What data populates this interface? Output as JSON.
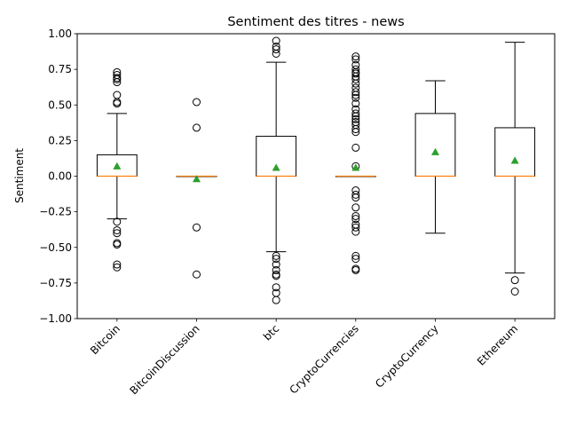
{
  "chart_data": {
    "type": "box",
    "title": "Sentiment des titres - news",
    "xlabel": "",
    "ylabel": "Sentiment",
    "ylim": [
      -1.0,
      1.0
    ],
    "yticks": [
      "−1.00",
      "−0.75",
      "−0.50",
      "−0.25",
      "0.00",
      "0.25",
      "0.50",
      "0.75",
      "1.00"
    ],
    "ytick_values": [
      -1.0,
      -0.75,
      -0.5,
      -0.25,
      0.0,
      0.25,
      0.5,
      0.75,
      1.0
    ],
    "categories": [
      "Bitcoin",
      "BitcoinDiscussion",
      "btc",
      "CryptoCurrencies",
      "CryptoCurrency",
      "Ethereum"
    ],
    "grid": false,
    "colors": {
      "box": "#000000",
      "median": "#ff7f0e",
      "mean": "#2ca02c"
    },
    "boxes": [
      {
        "q1": 0.0,
        "median": 0.0,
        "q3": 0.15,
        "whisker_low": -0.3,
        "whisker_high": 0.44,
        "mean": 0.07,
        "outliers": [
          0.73,
          0.71,
          0.69,
          0.68,
          0.66,
          0.57,
          0.52,
          0.51,
          -0.32,
          -0.38,
          -0.4,
          -0.47,
          -0.48,
          -0.62,
          -0.64
        ]
      },
      {
        "q1": 0.0,
        "median": 0.0,
        "q3": 0.0,
        "whisker_low": 0.0,
        "whisker_high": 0.0,
        "mean": -0.02,
        "outliers": [
          0.52,
          0.34,
          -0.36,
          -0.69
        ]
      },
      {
        "q1": 0.0,
        "median": 0.0,
        "q3": 0.28,
        "whisker_low": -0.53,
        "whisker_high": 0.8,
        "mean": 0.06,
        "outliers": [
          0.95,
          0.91,
          0.89,
          0.86,
          -0.56,
          -0.58,
          -0.62,
          -0.66,
          -0.69,
          -0.7,
          -0.78,
          -0.82,
          -0.87
        ]
      },
      {
        "q1": 0.0,
        "median": 0.0,
        "q3": 0.0,
        "whisker_low": 0.0,
        "whisker_high": 0.0,
        "mean": 0.06,
        "outliers": [
          0.84,
          0.82,
          0.78,
          0.75,
          0.73,
          0.72,
          0.7,
          0.68,
          0.65,
          0.62,
          0.59,
          0.57,
          0.55,
          0.51,
          0.47,
          0.44,
          0.42,
          0.4,
          0.38,
          0.36,
          0.33,
          0.31,
          0.2,
          0.07,
          -0.1,
          -0.13,
          -0.15,
          -0.22,
          -0.28,
          -0.3,
          -0.34,
          -0.36,
          -0.39,
          -0.56,
          -0.58,
          -0.65,
          -0.66
        ]
      },
      {
        "q1": 0.0,
        "median": 0.0,
        "q3": 0.44,
        "whisker_low": -0.4,
        "whisker_high": 0.67,
        "mean": 0.17,
        "outliers": []
      },
      {
        "q1": 0.0,
        "median": 0.0,
        "q3": 0.34,
        "whisker_low": -0.68,
        "whisker_high": 0.94,
        "mean": 0.11,
        "outliers": [
          -0.73,
          -0.81
        ]
      }
    ]
  }
}
